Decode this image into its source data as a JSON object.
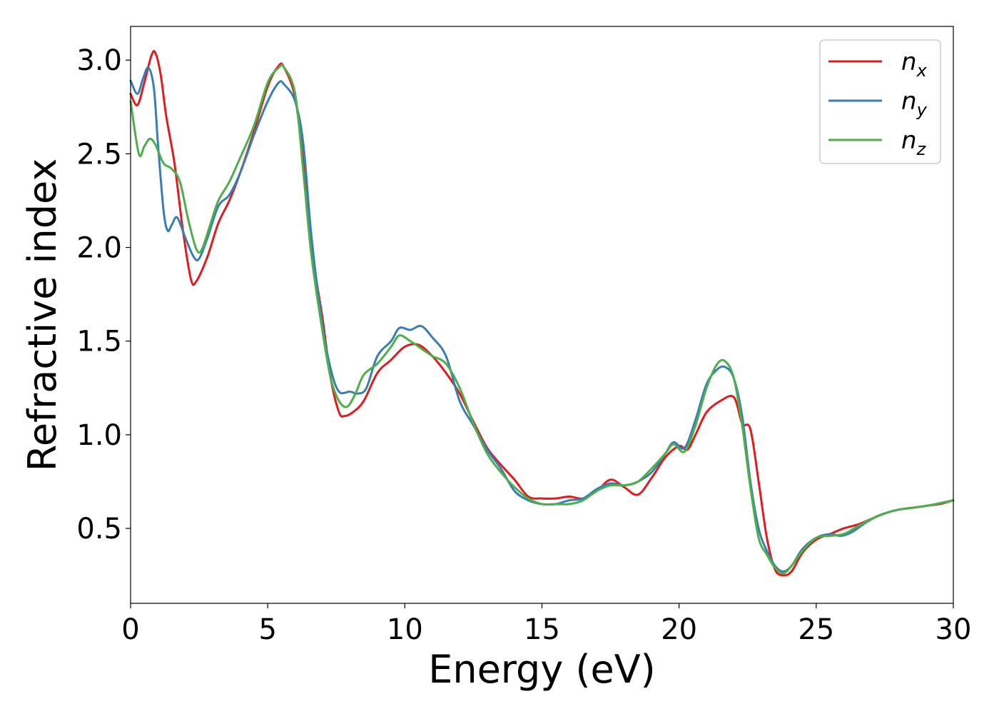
{
  "chart_data": {
    "type": "line",
    "xlabel": "Energy (eV)",
    "ylabel": "Refractive index",
    "xlim": [
      0,
      30
    ],
    "ylim": [
      0.1,
      3.18
    ],
    "xticks": [
      0,
      5,
      10,
      15,
      20,
      25,
      30
    ],
    "yticks": [
      0.5,
      1.0,
      1.5,
      2.0,
      2.5,
      3.0
    ],
    "xtick_labels": [
      "0",
      "5",
      "10",
      "15",
      "20",
      "25",
      "30"
    ],
    "ytick_labels": [
      "0.5",
      "1.0",
      "1.5",
      "2.0",
      "2.5",
      "3.0"
    ],
    "grid": false,
    "legend_position": "top-right",
    "series": [
      {
        "name": "n",
        "subscript": "x",
        "color": "#e41a1c",
        "points": [
          [
            0,
            2.82
          ],
          [
            0.25,
            2.76
          ],
          [
            0.5,
            2.88
          ],
          [
            0.75,
            3.02
          ],
          [
            0.9,
            3.04
          ],
          [
            1.1,
            2.92
          ],
          [
            1.3,
            2.7
          ],
          [
            1.6,
            2.45
          ],
          [
            1.9,
            2.1
          ],
          [
            2.2,
            1.83
          ],
          [
            2.4,
            1.82
          ],
          [
            2.8,
            1.95
          ],
          [
            3.2,
            2.13
          ],
          [
            3.6,
            2.25
          ],
          [
            4.0,
            2.4
          ],
          [
            4.5,
            2.62
          ],
          [
            5.0,
            2.86
          ],
          [
            5.4,
            2.97
          ],
          [
            5.6,
            2.96
          ],
          [
            6.0,
            2.8
          ],
          [
            6.3,
            2.45
          ],
          [
            6.6,
            2.0
          ],
          [
            7.0,
            1.62
          ],
          [
            7.3,
            1.3
          ],
          [
            7.6,
            1.12
          ],
          [
            7.8,
            1.1
          ],
          [
            8.1,
            1.12
          ],
          [
            8.5,
            1.18
          ],
          [
            9.0,
            1.33
          ],
          [
            9.5,
            1.4
          ],
          [
            10.0,
            1.47
          ],
          [
            10.5,
            1.48
          ],
          [
            11.0,
            1.42
          ],
          [
            11.5,
            1.33
          ],
          [
            12.0,
            1.22
          ],
          [
            12.5,
            1.07
          ],
          [
            13.0,
            0.93
          ],
          [
            13.5,
            0.84
          ],
          [
            14.0,
            0.76
          ],
          [
            14.5,
            0.67
          ],
          [
            15.0,
            0.66
          ],
          [
            15.5,
            0.66
          ],
          [
            16.0,
            0.67
          ],
          [
            16.5,
            0.66
          ],
          [
            17.0,
            0.7
          ],
          [
            17.5,
            0.76
          ],
          [
            18.0,
            0.72
          ],
          [
            18.5,
            0.68
          ],
          [
            19.0,
            0.77
          ],
          [
            19.5,
            0.88
          ],
          [
            20.0,
            0.94
          ],
          [
            20.3,
            0.92
          ],
          [
            20.6,
            1.0
          ],
          [
            21.0,
            1.12
          ],
          [
            21.5,
            1.18
          ],
          [
            22.0,
            1.2
          ],
          [
            22.3,
            1.06
          ],
          [
            22.6,
            1.03
          ],
          [
            22.9,
            0.75
          ],
          [
            23.2,
            0.45
          ],
          [
            23.5,
            0.28
          ],
          [
            23.8,
            0.25
          ],
          [
            24.1,
            0.27
          ],
          [
            24.5,
            0.37
          ],
          [
            25.0,
            0.44
          ],
          [
            25.5,
            0.47
          ],
          [
            26.0,
            0.5
          ],
          [
            26.5,
            0.52
          ],
          [
            27.0,
            0.55
          ],
          [
            27.5,
            0.58
          ],
          [
            28.0,
            0.6
          ],
          [
            28.5,
            0.61
          ],
          [
            29.0,
            0.62
          ],
          [
            29.5,
            0.63
          ],
          [
            30.0,
            0.65
          ]
        ]
      },
      {
        "name": "n",
        "subscript": "y",
        "color": "#377eb8",
        "points": [
          [
            0,
            2.89
          ],
          [
            0.25,
            2.82
          ],
          [
            0.45,
            2.9
          ],
          [
            0.65,
            2.96
          ],
          [
            0.85,
            2.85
          ],
          [
            1.0,
            2.55
          ],
          [
            1.2,
            2.2
          ],
          [
            1.35,
            2.09
          ],
          [
            1.5,
            2.12
          ],
          [
            1.7,
            2.16
          ],
          [
            2.0,
            2.05
          ],
          [
            2.3,
            1.95
          ],
          [
            2.5,
            1.94
          ],
          [
            2.8,
            2.05
          ],
          [
            3.2,
            2.22
          ],
          [
            3.6,
            2.28
          ],
          [
            4.0,
            2.4
          ],
          [
            4.5,
            2.6
          ],
          [
            5.0,
            2.78
          ],
          [
            5.4,
            2.88
          ],
          [
            5.6,
            2.87
          ],
          [
            6.0,
            2.78
          ],
          [
            6.3,
            2.55
          ],
          [
            6.6,
            2.05
          ],
          [
            7.0,
            1.58
          ],
          [
            7.3,
            1.35
          ],
          [
            7.6,
            1.23
          ],
          [
            8.0,
            1.23
          ],
          [
            8.3,
            1.22
          ],
          [
            8.6,
            1.25
          ],
          [
            9.0,
            1.42
          ],
          [
            9.5,
            1.5
          ],
          [
            9.8,
            1.57
          ],
          [
            10.2,
            1.56
          ],
          [
            10.6,
            1.58
          ],
          [
            11.0,
            1.52
          ],
          [
            11.5,
            1.42
          ],
          [
            12.0,
            1.18
          ],
          [
            12.5,
            1.05
          ],
          [
            13.0,
            0.92
          ],
          [
            13.5,
            0.82
          ],
          [
            14.0,
            0.7
          ],
          [
            14.5,
            0.65
          ],
          [
            15.0,
            0.63
          ],
          [
            15.5,
            0.63
          ],
          [
            16.0,
            0.65
          ],
          [
            16.5,
            0.66
          ],
          [
            17.0,
            0.71
          ],
          [
            17.5,
            0.74
          ],
          [
            18.0,
            0.73
          ],
          [
            18.5,
            0.75
          ],
          [
            19.0,
            0.8
          ],
          [
            19.5,
            0.9
          ],
          [
            19.8,
            0.96
          ],
          [
            20.2,
            0.93
          ],
          [
            20.6,
            1.08
          ],
          [
            21.0,
            1.27
          ],
          [
            21.4,
            1.35
          ],
          [
            21.7,
            1.36
          ],
          [
            22.0,
            1.3
          ],
          [
            22.3,
            1.1
          ],
          [
            22.6,
            0.75
          ],
          [
            22.9,
            0.5
          ],
          [
            23.2,
            0.38
          ],
          [
            23.5,
            0.3
          ],
          [
            23.8,
            0.27
          ],
          [
            24.1,
            0.3
          ],
          [
            24.5,
            0.39
          ],
          [
            25.0,
            0.45
          ],
          [
            25.5,
            0.47
          ],
          [
            25.9,
            0.46
          ],
          [
            26.3,
            0.48
          ],
          [
            26.8,
            0.53
          ],
          [
            27.3,
            0.57
          ],
          [
            28.0,
            0.6
          ],
          [
            29.0,
            0.62
          ],
          [
            30.0,
            0.65
          ]
        ]
      },
      {
        "name": "n",
        "subscript": "z",
        "color": "#4daf4a",
        "points": [
          [
            0,
            2.78
          ],
          [
            0.3,
            2.5
          ],
          [
            0.5,
            2.54
          ],
          [
            0.7,
            2.58
          ],
          [
            0.9,
            2.55
          ],
          [
            1.2,
            2.45
          ],
          [
            1.5,
            2.42
          ],
          [
            1.8,
            2.35
          ],
          [
            2.1,
            2.15
          ],
          [
            2.4,
            1.99
          ],
          [
            2.6,
            1.99
          ],
          [
            2.9,
            2.12
          ],
          [
            3.2,
            2.25
          ],
          [
            3.6,
            2.35
          ],
          [
            4.0,
            2.48
          ],
          [
            4.5,
            2.65
          ],
          [
            5.0,
            2.88
          ],
          [
            5.4,
            2.96
          ],
          [
            5.6,
            2.96
          ],
          [
            6.0,
            2.82
          ],
          [
            6.3,
            2.4
          ],
          [
            6.6,
            1.95
          ],
          [
            7.0,
            1.55
          ],
          [
            7.3,
            1.3
          ],
          [
            7.6,
            1.18
          ],
          [
            7.9,
            1.15
          ],
          [
            8.2,
            1.22
          ],
          [
            8.5,
            1.32
          ],
          [
            9.0,
            1.38
          ],
          [
            9.5,
            1.47
          ],
          [
            9.8,
            1.53
          ],
          [
            10.2,
            1.5
          ],
          [
            10.6,
            1.46
          ],
          [
            11.0,
            1.42
          ],
          [
            11.5,
            1.38
          ],
          [
            12.0,
            1.25
          ],
          [
            12.5,
            1.06
          ],
          [
            13.0,
            0.9
          ],
          [
            13.5,
            0.8
          ],
          [
            14.0,
            0.72
          ],
          [
            14.5,
            0.66
          ],
          [
            15.0,
            0.63
          ],
          [
            15.5,
            0.63
          ],
          [
            16.0,
            0.63
          ],
          [
            16.5,
            0.65
          ],
          [
            17.0,
            0.7
          ],
          [
            17.5,
            0.73
          ],
          [
            18.0,
            0.73
          ],
          [
            18.5,
            0.75
          ],
          [
            19.0,
            0.82
          ],
          [
            19.5,
            0.9
          ],
          [
            19.8,
            0.95
          ],
          [
            20.2,
            0.91
          ],
          [
            20.6,
            1.05
          ],
          [
            21.0,
            1.25
          ],
          [
            21.4,
            1.38
          ],
          [
            21.7,
            1.39
          ],
          [
            22.0,
            1.3
          ],
          [
            22.3,
            1.05
          ],
          [
            22.6,
            0.72
          ],
          [
            22.9,
            0.45
          ],
          [
            23.2,
            0.36
          ],
          [
            23.5,
            0.29
          ],
          [
            23.8,
            0.26
          ],
          [
            24.1,
            0.3
          ],
          [
            24.5,
            0.38
          ],
          [
            25.0,
            0.45
          ],
          [
            25.5,
            0.46
          ],
          [
            26.0,
            0.47
          ],
          [
            26.5,
            0.51
          ],
          [
            27.0,
            0.55
          ],
          [
            27.5,
            0.58
          ],
          [
            28.0,
            0.6
          ],
          [
            29.0,
            0.62
          ],
          [
            30.0,
            0.65
          ]
        ]
      }
    ]
  }
}
